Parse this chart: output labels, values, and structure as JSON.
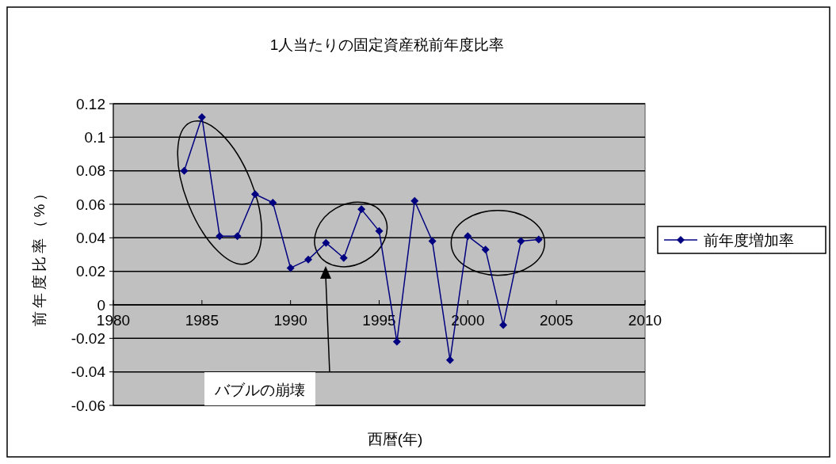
{
  "chart_data": {
    "type": "line",
    "title": "1人当たりの固定資産税前年度比率",
    "xlabel": "西暦(年)",
    "ylabel": "前年度比率（%）",
    "x": [
      1984,
      1985,
      1986,
      1987,
      1988,
      1989,
      1990,
      1991,
      1992,
      1993,
      1994,
      1995,
      1996,
      1997,
      1998,
      1999,
      2000,
      2001,
      2002,
      2003,
      2004
    ],
    "series": [
      {
        "name": "前年度増加率",
        "color": "#000080",
        "values": [
          0.08,
          0.112,
          0.041,
          0.041,
          0.066,
          0.061,
          0.022,
          0.027,
          0.037,
          0.028,
          0.057,
          0.044,
          -0.022,
          0.062,
          0.038,
          -0.033,
          0.041,
          0.033,
          -0.012,
          0.038,
          0.039
        ]
      }
    ],
    "xlim": [
      1980,
      2010
    ],
    "xticks": [
      1980,
      1985,
      1990,
      1995,
      2000,
      2005,
      2010
    ],
    "ylim": [
      -0.06,
      0.12
    ],
    "yticks": [
      -0.06,
      -0.04,
      -0.02,
      0,
      0.02,
      0.04,
      0.06,
      0.08,
      0.1,
      0.12
    ],
    "grid": "y",
    "legend": "right",
    "marker": "diamond",
    "line_style": "solid",
    "annotations": [
      "バブルの崩壊"
    ]
  }
}
